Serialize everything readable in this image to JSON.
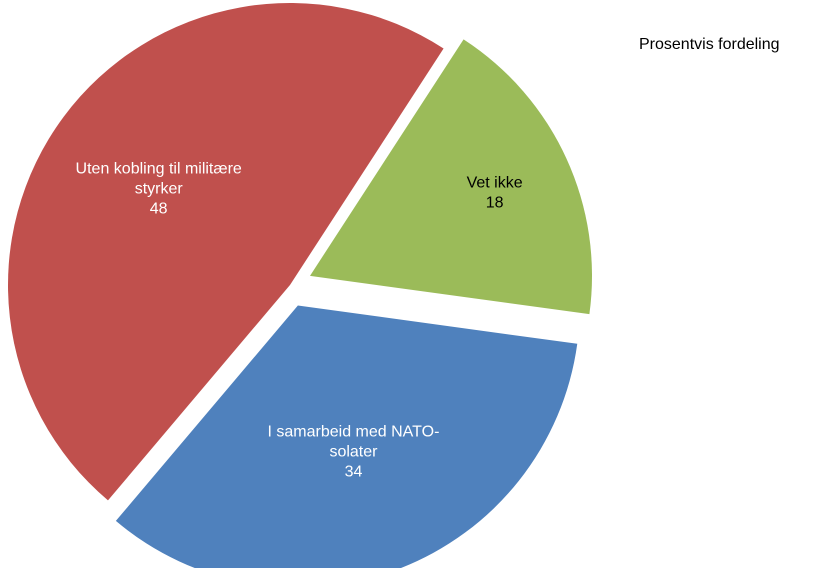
{
  "legend_title": "Prosentvis fordeling",
  "chart_data": {
    "type": "pie",
    "title": "",
    "legend_placement": "top-right",
    "series": [
      {
        "values": [
          18,
          34,
          48
        ],
        "slices": [
          {
            "label_lines": [
              "Vet ikke"
            ],
            "value": 18,
            "color": "#9BBB59"
          },
          {
            "label_lines": [
              "I samarbeid med NATO-",
              "solater"
            ],
            "value": 34,
            "color": "#4F81BD"
          },
          {
            "label_lines": [
              "Uten kobling til militære",
              "styrker"
            ],
            "value": 48,
            "color": "#C0504D"
          }
        ]
      }
    ]
  }
}
